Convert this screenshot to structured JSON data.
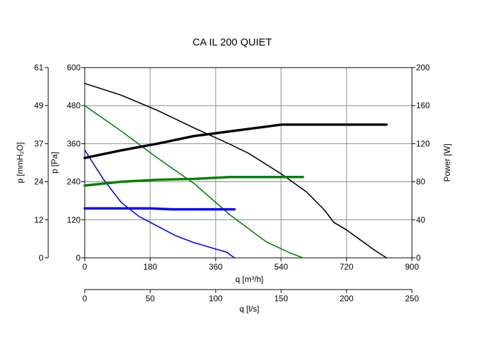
{
  "chart_data": {
    "type": "line",
    "title": "CA IL 200 QUIET",
    "grid": true,
    "legend": "none",
    "x_axis": {
      "label": "q [m³/h]",
      "range": [
        0,
        900
      ],
      "ticks": [
        "0",
        "180",
        "360",
        "540",
        "720",
        "900"
      ]
    },
    "x2_axis": {
      "label": "q [l/s]",
      "range": [
        0,
        250
      ],
      "ticks": [
        "0",
        "50",
        "100",
        "150",
        "200",
        "250"
      ]
    },
    "y_axis": {
      "label": "p [Pa]",
      "range": [
        0,
        600
      ],
      "ticks": [
        "0",
        "120",
        "240",
        "360",
        "480",
        "600"
      ]
    },
    "y_outer_axis": {
      "label": "p [mmH₂O]",
      "ticks": [
        "0",
        "12",
        "24",
        "37",
        "49",
        "61"
      ]
    },
    "y2_axis": {
      "label": "Power [W]",
      "range": [
        0,
        200
      ],
      "ticks": [
        "0",
        "40",
        "80",
        "120",
        "160",
        "200"
      ]
    },
    "series": [
      {
        "color": "#000000",
        "axis": "pressure",
        "kind": "pressure",
        "x": [
          0,
          100,
          200,
          300,
          400,
          450,
          540,
          610,
          660,
          685,
          720,
          760,
          800,
          830
        ],
        "y": [
          550,
          513,
          465,
          410,
          358,
          330,
          265,
          208,
          150,
          112,
          88,
          55,
          22,
          0
        ]
      },
      {
        "color": "#008000",
        "axis": "pressure",
        "kind": "pressure",
        "x": [
          0,
          100,
          200,
          300,
          400,
          500,
          560,
          600
        ],
        "y": [
          480,
          400,
          315,
          235,
          135,
          50,
          18,
          0
        ]
      },
      {
        "color": "#0000ff",
        "axis": "pressure",
        "kind": "pressure",
        "x": [
          0,
          50,
          100,
          150,
          200,
          250,
          300,
          360,
          390,
          412
        ],
        "y": [
          340,
          250,
          175,
          130,
          100,
          70,
          48,
          28,
          18,
          0
        ]
      },
      {
        "color": "#000000",
        "axis": "power",
        "kind": "power",
        "x": [
          0,
          100,
          200,
          300,
          400,
          540,
          620,
          720,
          830
        ],
        "y": [
          105,
          113,
          120,
          128,
          133,
          140,
          140,
          140,
          140
        ]
      },
      {
        "color": "#008000",
        "axis": "power",
        "kind": "power",
        "x": [
          0,
          100,
          200,
          300,
          400,
          500,
          600
        ],
        "y": [
          76,
          80,
          82,
          83,
          85,
          85,
          85
        ]
      },
      {
        "color": "#0000ff",
        "axis": "power",
        "kind": "power",
        "x": [
          0,
          100,
          180,
          240,
          300,
          412
        ],
        "y": [
          52,
          52,
          52,
          51,
          51,
          51
        ]
      }
    ]
  }
}
